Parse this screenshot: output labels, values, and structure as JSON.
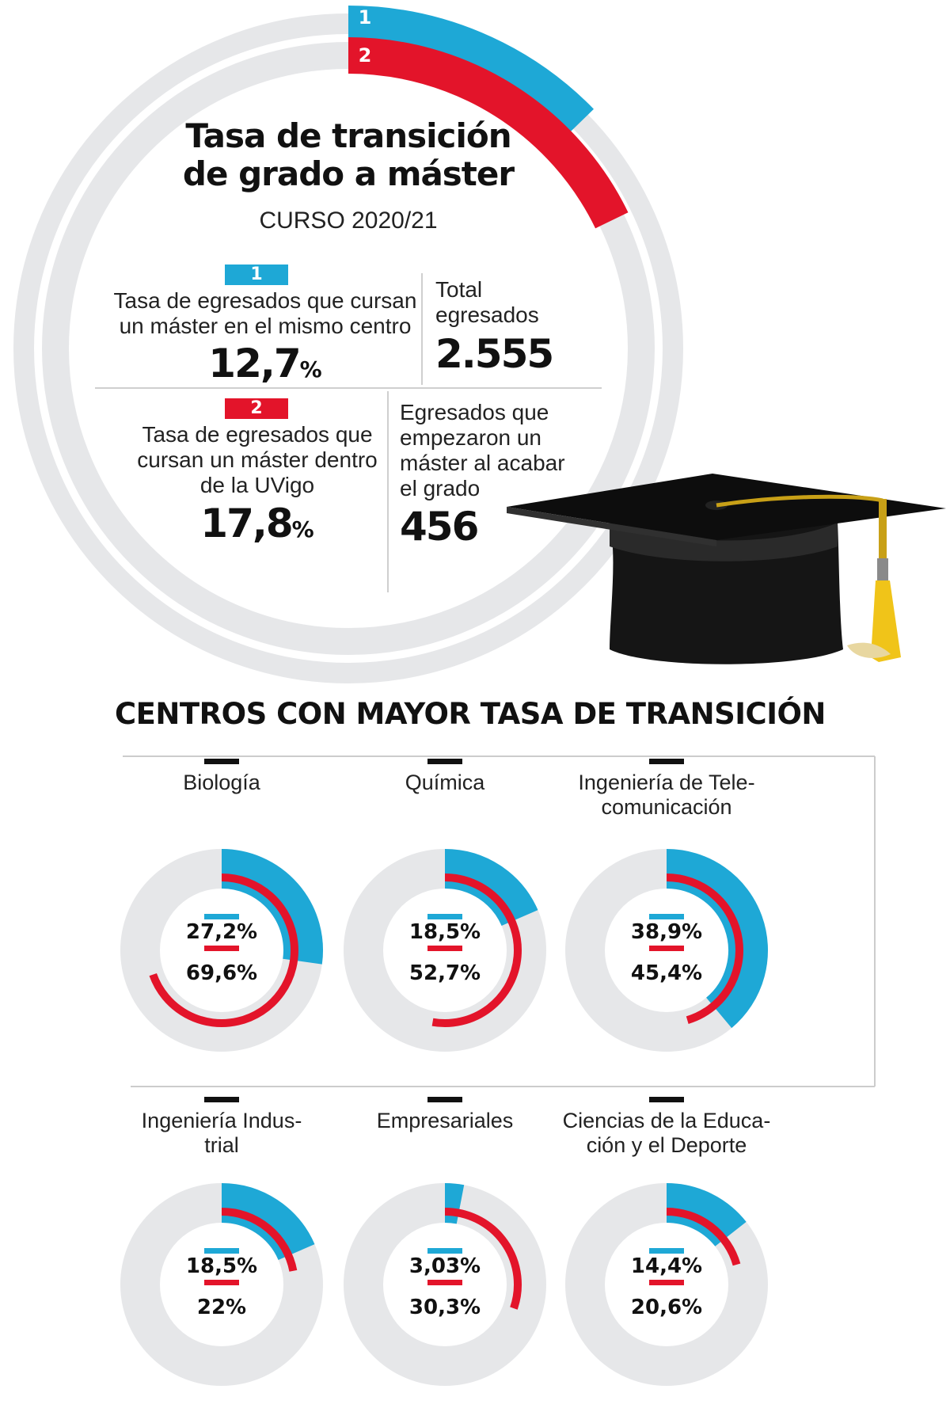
{
  "header": {
    "title_line1": "Tasa de transición",
    "title_line2": "de grado a máster",
    "subtitle": "CURSO 2020/21",
    "ring_label_1": "1",
    "ring_label_2": "2"
  },
  "stats": {
    "rate1": {
      "badge": "1",
      "label_line1": "Tasa de egresados que cursan",
      "label_line2": "un máster en el mismo centro",
      "value": "12,7",
      "unit": "%"
    },
    "rate2": {
      "badge": "2",
      "label_line1": "Tasa de egresados que",
      "label_line2": "cursan un máster dentro",
      "label_line3": "de la UVigo",
      "value": "17,8",
      "unit": "%"
    },
    "total": {
      "label_line1": "Total",
      "label_line2": "egresados",
      "value": "2.555"
    },
    "started": {
      "label_line1": "Egresados que",
      "label_line2": "empezaron un",
      "label_line3": "máster al acabar",
      "label_line4": "el grado",
      "value": "456"
    }
  },
  "section_title": "CENTROS CON MAYOR TASA DE TRANSICIÓN",
  "colors": {
    "blue": "#1ea8d6",
    "red": "#e3142a",
    "track": "#e6e7e9",
    "text": "#111111"
  },
  "icons": [
    "graduation-cap-icon"
  ],
  "chart_data": [
    {
      "type": "pie",
      "title": "Tasa de transición de grado a máster",
      "subtitle": "CURSO 2020/21",
      "series": [
        {
          "name": "1",
          "values": [
            12.7
          ]
        },
        {
          "name": "2",
          "values": [
            17.8
          ]
        }
      ],
      "max": 100
    },
    {
      "type": "pie",
      "title": "CENTROS CON MAYOR TASA DE TRANSICIÓN",
      "categories": [
        {
          "line1": "Biología",
          "line2": ""
        },
        {
          "line1": "Química",
          "line2": ""
        },
        {
          "line1": "Ingeniería de Tele-",
          "line2": "comunicación"
        },
        {
          "line1": "Ingeniería Indus-",
          "line2": "trial"
        },
        {
          "line1": "Empresariales",
          "line2": ""
        },
        {
          "line1": "Ciencias de la Educa-",
          "line2": "ción y el Deporte"
        }
      ],
      "series": [
        {
          "name": "1",
          "values": [
            27.2,
            18.5,
            38.9,
            18.5,
            3.03,
            14.4
          ]
        },
        {
          "name": "2",
          "values": [
            69.6,
            52.7,
            45.4,
            22,
            30.3,
            20.6
          ]
        }
      ],
      "value_labels_1": [
        "27,2%",
        "18,5%",
        "38,9%",
        "18,5%",
        "3,03%",
        "14,4%"
      ],
      "value_labels_2": [
        "69,6%",
        "52,7%",
        "45,4%",
        "22%",
        "30,3%",
        "20,6%"
      ],
      "max": 100
    }
  ]
}
